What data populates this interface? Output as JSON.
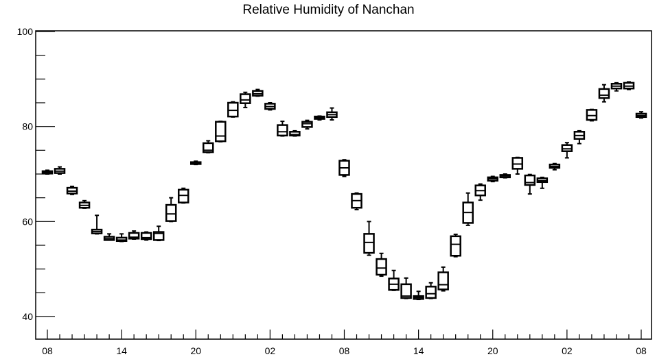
{
  "chart_data": {
    "type": "box",
    "title": "Relative Humidity of Nanchan",
    "xlabel": "",
    "ylabel": "",
    "ylim": [
      35,
      100
    ],
    "yticks": [
      40,
      60,
      80,
      100
    ],
    "xtick_labels": [
      "08",
      "14",
      "20",
      "02",
      "08",
      "14",
      "20",
      "02",
      "08"
    ],
    "xtick_hours": [
      0,
      6,
      12,
      18,
      24,
      30,
      36,
      42,
      48
    ],
    "grid": false,
    "boxes": [
      {
        "hour": 0,
        "min": 70.0,
        "q1": 70.1,
        "median": 70.4,
        "q3": 70.6,
        "max": 70.8
      },
      {
        "hour": 1,
        "min": 70.0,
        "q1": 70.2,
        "median": 70.6,
        "q3": 71.1,
        "max": 71.5
      },
      {
        "hour": 2,
        "min": 65.7,
        "q1": 65.9,
        "median": 66.4,
        "q3": 67.1,
        "max": 67.4
      },
      {
        "hour": 3,
        "min": 62.8,
        "q1": 62.9,
        "median": 63.4,
        "q3": 64.0,
        "max": 64.4
      },
      {
        "hour": 4,
        "min": 57.4,
        "q1": 57.5,
        "median": 57.9,
        "q3": 58.3,
        "max": 61.3
      },
      {
        "hour": 5,
        "min": 56.1,
        "q1": 56.1,
        "median": 56.4,
        "q3": 56.8,
        "max": 57.4
      },
      {
        "hour": 6,
        "min": 55.8,
        "q1": 55.9,
        "median": 56.1,
        "q3": 56.6,
        "max": 57.4
      },
      {
        "hour": 7,
        "min": 56.3,
        "q1": 56.4,
        "median": 56.7,
        "q3": 57.6,
        "max": 58.0
      },
      {
        "hour": 8,
        "min": 56.1,
        "q1": 56.3,
        "median": 56.6,
        "q3": 57.6,
        "max": 57.8
      },
      {
        "hour": 9,
        "min": 56.0,
        "q1": 56.1,
        "median": 57.5,
        "q3": 57.8,
        "max": 59.0
      },
      {
        "hour": 10,
        "min": 60.0,
        "q1": 60.1,
        "median": 61.6,
        "q3": 63.5,
        "max": 65.0
      },
      {
        "hour": 11,
        "min": 63.9,
        "q1": 64.0,
        "median": 65.5,
        "q3": 66.7,
        "max": 67.0
      },
      {
        "hour": 12,
        "min": 72.0,
        "q1": 72.1,
        "median": 72.3,
        "q3": 72.5,
        "max": 72.7
      },
      {
        "hour": 13,
        "min": 74.5,
        "q1": 74.6,
        "median": 75.0,
        "q3": 76.5,
        "max": 77.0
      },
      {
        "hour": 14,
        "min": 76.8,
        "q1": 76.9,
        "median": 78.0,
        "q3": 81.0,
        "max": 81.1
      },
      {
        "hour": 15,
        "min": 82.0,
        "q1": 82.1,
        "median": 83.4,
        "q3": 85.0,
        "max": 85.2
      },
      {
        "hour": 16,
        "min": 84.0,
        "q1": 84.9,
        "median": 85.6,
        "q3": 86.8,
        "max": 87.2
      },
      {
        "hour": 17,
        "min": 86.4,
        "q1": 86.5,
        "median": 86.9,
        "q3": 87.5,
        "max": 87.8
      },
      {
        "hour": 18,
        "min": 83.5,
        "q1": 83.7,
        "median": 84.2,
        "q3": 84.8,
        "max": 85.0
      },
      {
        "hour": 19,
        "min": 78.0,
        "q1": 78.1,
        "median": 78.9,
        "q3": 80.3,
        "max": 81.1
      },
      {
        "hour": 20,
        "min": 78.0,
        "q1": 78.1,
        "median": 78.3,
        "q3": 78.9,
        "max": 79.1
      },
      {
        "hour": 21,
        "min": 79.5,
        "q1": 79.9,
        "median": 80.6,
        "q3": 81.0,
        "max": 81.3
      },
      {
        "hour": 22,
        "min": 81.4,
        "q1": 81.6,
        "median": 81.9,
        "q3": 82.1,
        "max": 82.2
      },
      {
        "hour": 23,
        "min": 81.4,
        "q1": 82.0,
        "median": 82.5,
        "q3": 83.0,
        "max": 83.9
      },
      {
        "hour": 24,
        "min": 69.5,
        "q1": 69.8,
        "median": 71.3,
        "q3": 72.8,
        "max": 73.0
      },
      {
        "hour": 25,
        "min": 62.5,
        "q1": 62.9,
        "median": 64.4,
        "q3": 65.8,
        "max": 66.0
      },
      {
        "hour": 26,
        "min": 52.9,
        "q1": 53.4,
        "median": 55.6,
        "q3": 57.4,
        "max": 60.0
      },
      {
        "hour": 27,
        "min": 48.5,
        "q1": 48.8,
        "median": 50.2,
        "q3": 52.1,
        "max": 53.3
      },
      {
        "hour": 28,
        "min": 45.5,
        "q1": 45.6,
        "median": 46.8,
        "q3": 48.0,
        "max": 49.7
      },
      {
        "hour": 29,
        "min": 43.8,
        "q1": 43.9,
        "median": 44.3,
        "q3": 46.8,
        "max": 48.1
      },
      {
        "hour": 30,
        "min": 43.6,
        "q1": 43.7,
        "median": 44.0,
        "q3": 44.3,
        "max": 45.3
      },
      {
        "hour": 31,
        "min": 43.8,
        "q1": 43.9,
        "median": 44.8,
        "q3": 46.3,
        "max": 47.1
      },
      {
        "hour": 32,
        "min": 45.4,
        "q1": 45.7,
        "median": 46.7,
        "q3": 49.3,
        "max": 50.4
      },
      {
        "hour": 33,
        "min": 52.6,
        "q1": 52.8,
        "median": 55.2,
        "q3": 56.9,
        "max": 57.3
      },
      {
        "hour": 34,
        "min": 59.2,
        "q1": 59.7,
        "median": 61.9,
        "q3": 64.0,
        "max": 66.0
      },
      {
        "hour": 35,
        "min": 64.5,
        "q1": 65.5,
        "median": 66.5,
        "q3": 67.6,
        "max": 67.9
      },
      {
        "hour": 36,
        "min": 68.4,
        "q1": 68.6,
        "median": 69.0,
        "q3": 69.3,
        "max": 69.5
      },
      {
        "hour": 37,
        "min": 69.2,
        "q1": 69.3,
        "median": 69.6,
        "q3": 69.8,
        "max": 70.0
      },
      {
        "hour": 38,
        "min": 70.0,
        "q1": 71.1,
        "median": 72.1,
        "q3": 73.4,
        "max": 73.5
      },
      {
        "hour": 39,
        "min": 65.8,
        "q1": 67.7,
        "median": 68.2,
        "q3": 69.7,
        "max": 69.9
      },
      {
        "hour": 40,
        "min": 67.0,
        "q1": 68.3,
        "median": 68.6,
        "q3": 69.1,
        "max": 69.3
      },
      {
        "hour": 41,
        "min": 70.9,
        "q1": 71.3,
        "median": 71.6,
        "q3": 72.0,
        "max": 72.2
      },
      {
        "hour": 42,
        "min": 73.4,
        "q1": 74.8,
        "median": 75.3,
        "q3": 76.1,
        "max": 76.6
      },
      {
        "hour": 43,
        "min": 76.4,
        "q1": 77.4,
        "median": 78.1,
        "q3": 78.9,
        "max": 79.1
      },
      {
        "hour": 44,
        "min": 81.2,
        "q1": 81.4,
        "median": 82.3,
        "q3": 83.5,
        "max": 83.6
      },
      {
        "hour": 45,
        "min": 85.2,
        "q1": 86.0,
        "median": 86.6,
        "q3": 87.9,
        "max": 88.8
      },
      {
        "hour": 46,
        "min": 87.5,
        "q1": 88.0,
        "median": 88.5,
        "q3": 89.0,
        "max": 89.2
      },
      {
        "hour": 47,
        "min": 87.8,
        "q1": 88.0,
        "median": 88.5,
        "q3": 89.2,
        "max": 89.4
      },
      {
        "hour": 48,
        "min": 81.8,
        "q1": 82.0,
        "median": 82.3,
        "q3": 82.7,
        "max": 83.1
      }
    ]
  }
}
